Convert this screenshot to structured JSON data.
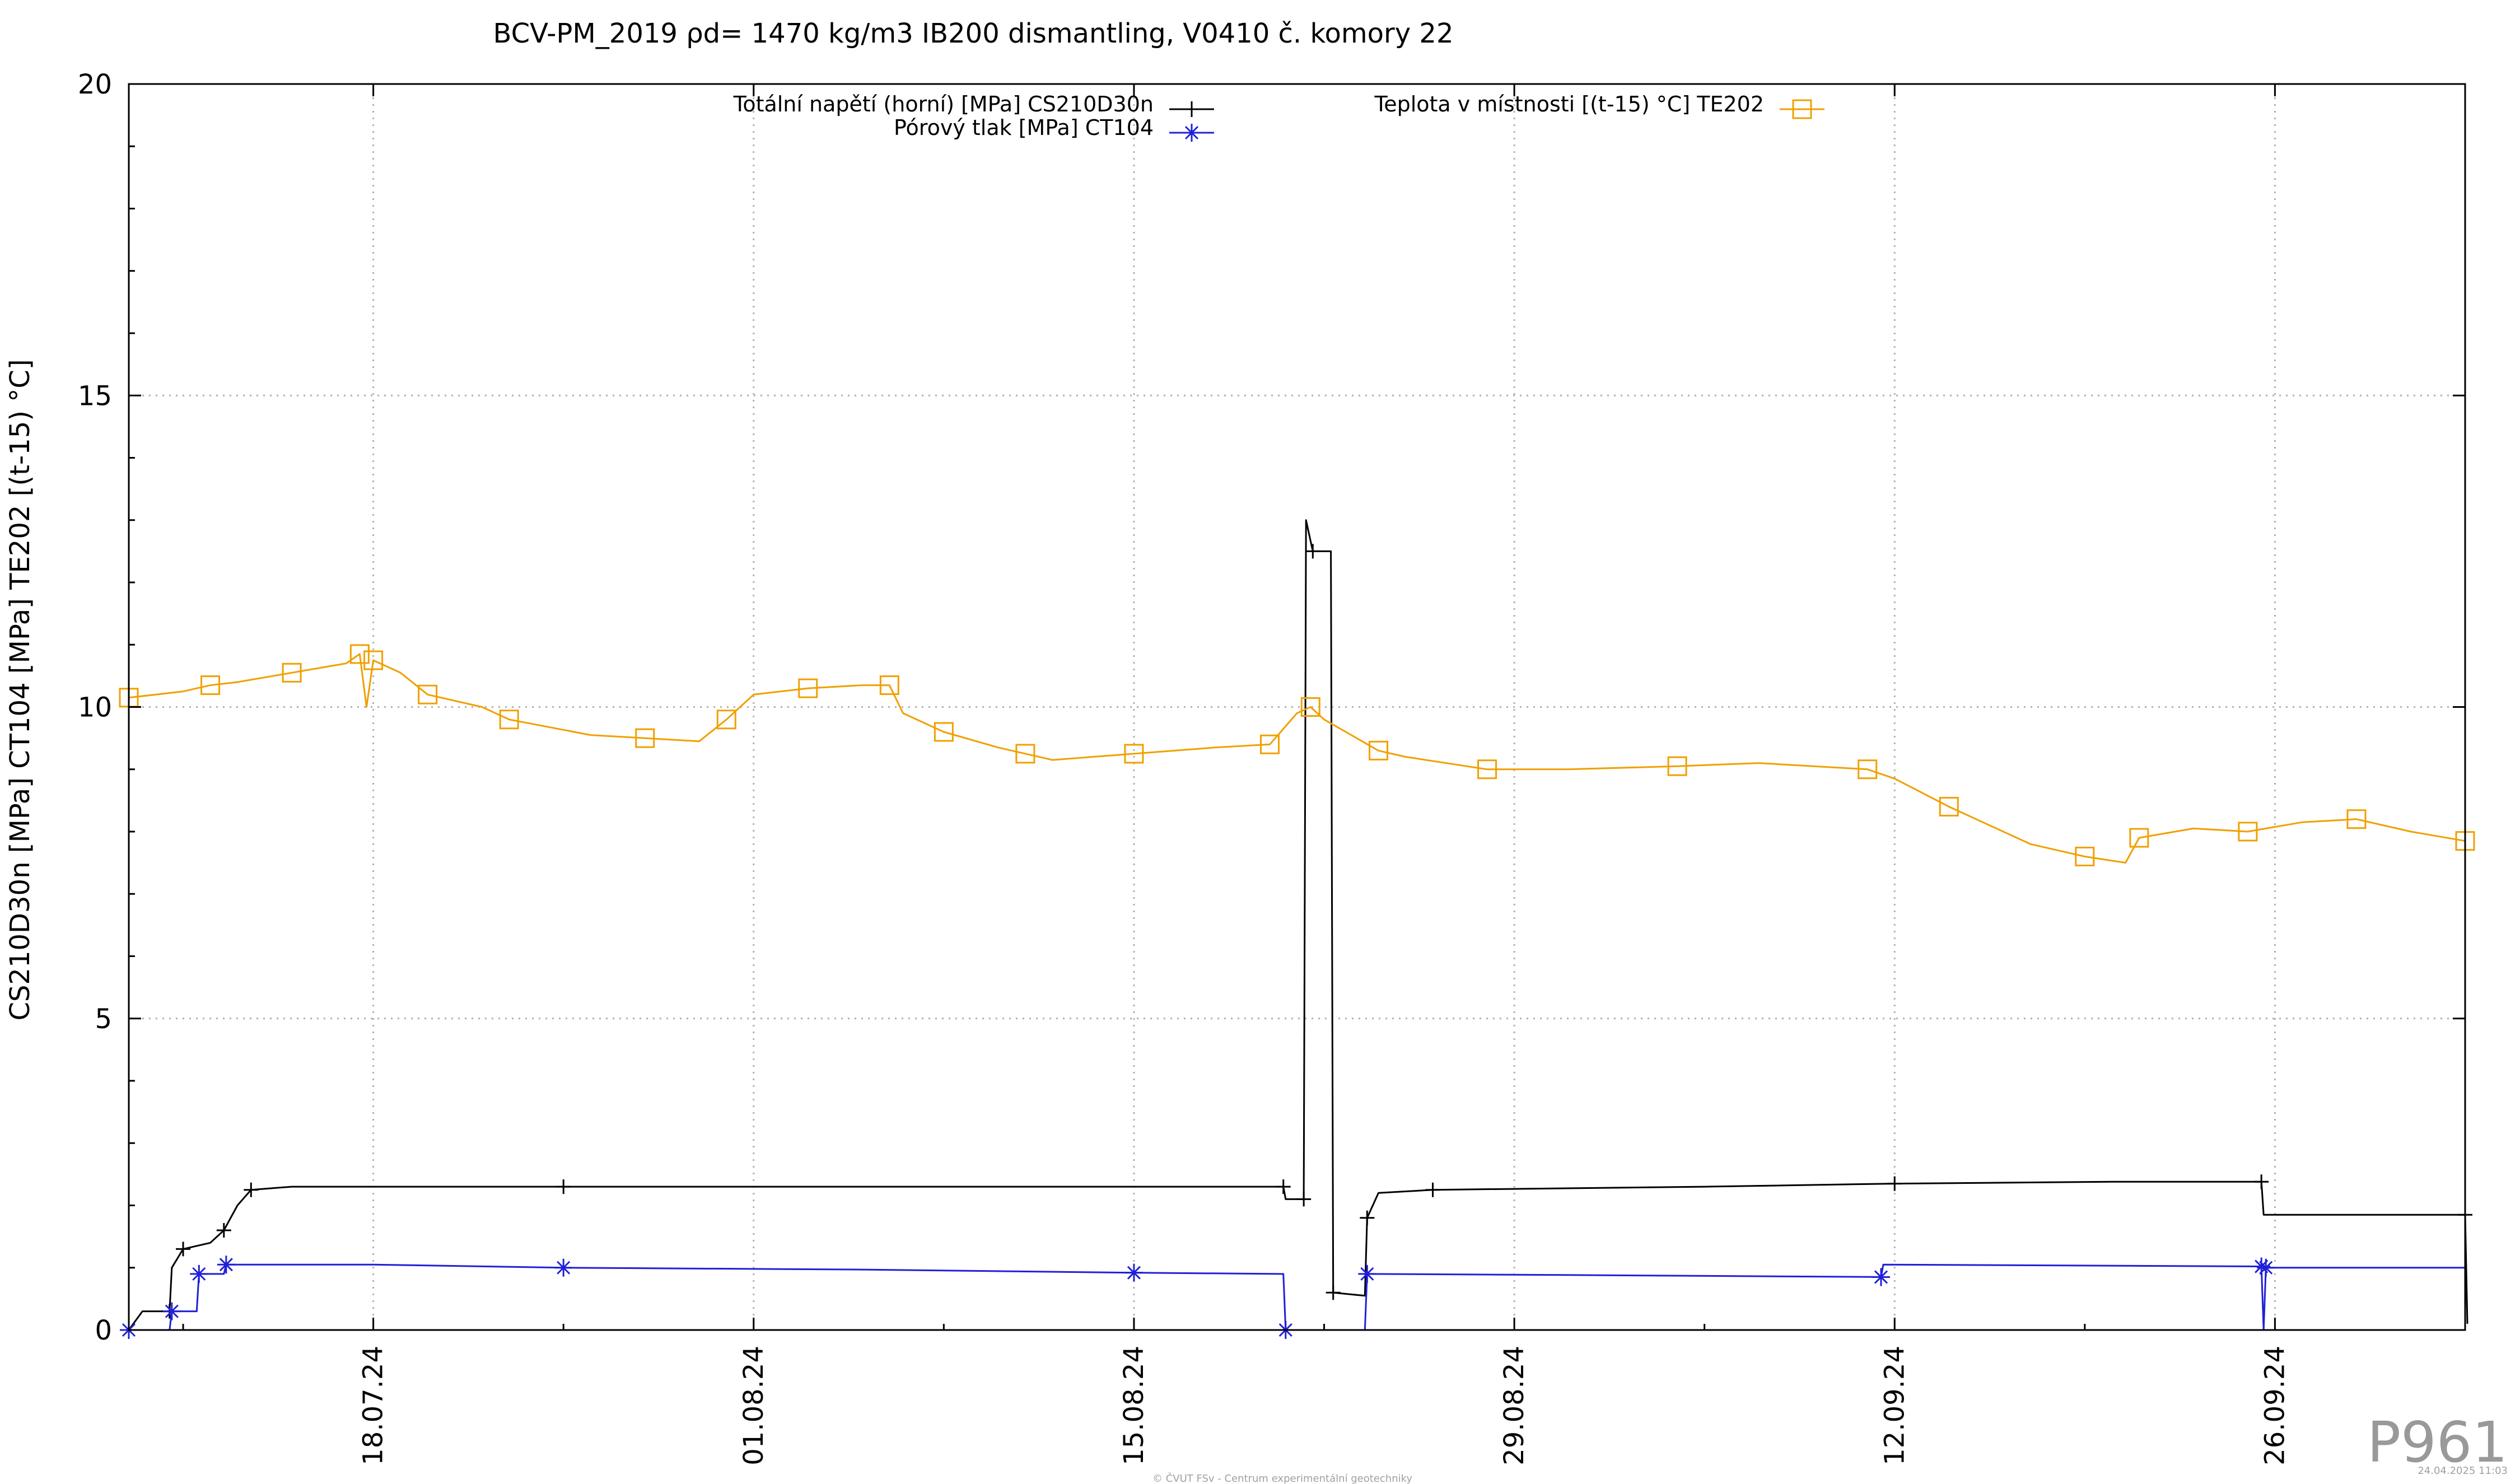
{
  "chart_data": {
    "type": "line",
    "title": "BCV-PM_2019 ρd= 1470 kg/m3 IB200 dismantling, V0410 č. komory 22",
    "ylabel": "CS210D30n [MPa] CT104 [MPa] TE202 [(t-15) °C]",
    "xlabel": "",
    "ylim": [
      0,
      20
    ],
    "xlim": [
      "2024-07-09",
      "2024-10-03"
    ],
    "yticks": [
      "0",
      "5",
      "10",
      "15",
      "20"
    ],
    "xticks": [
      {
        "date": "2024-07-18",
        "label": "18.07.24"
      },
      {
        "date": "2024-08-01",
        "label": "01.08.24"
      },
      {
        "date": "2024-08-15",
        "label": "15.08.24"
      },
      {
        "date": "2024-08-29",
        "label": "29.08.24"
      },
      {
        "date": "2024-09-12",
        "label": "12.09.24"
      },
      {
        "date": "2024-09-26",
        "label": "26.09.24"
      }
    ],
    "grid": true,
    "legend_position": "top",
    "series": [
      {
        "name": "Totální napětí (horní) [MPa] CS210D30n",
        "color": "#000000",
        "marker": "plus",
        "points": [
          [
            "2024-07-09T00:00",
            0.0
          ],
          [
            "2024-07-09T12:00",
            0.3
          ],
          [
            "2024-07-10T12:00",
            0.3
          ],
          [
            "2024-07-10T14:00",
            1.0
          ],
          [
            "2024-07-11T00:00",
            1.3
          ],
          [
            "2024-07-12T00:00",
            1.4
          ],
          [
            "2024-07-12T12:00",
            1.6
          ],
          [
            "2024-07-13T00:00",
            2.0
          ],
          [
            "2024-07-13T12:00",
            2.25
          ],
          [
            "2024-07-15T00:00",
            2.3
          ],
          [
            "2024-07-25T00:00",
            2.3
          ],
          [
            "2024-08-05T00:00",
            2.3
          ],
          [
            "2024-08-20T12:00",
            2.3
          ],
          [
            "2024-08-20T14:00",
            2.1
          ],
          [
            "2024-08-21T06:00",
            2.1
          ],
          [
            "2024-08-21T08:00",
            13.0
          ],
          [
            "2024-08-21T14:00",
            12.5
          ],
          [
            "2024-08-22T06:00",
            12.5
          ],
          [
            "2024-08-22T08:00",
            0.6
          ],
          [
            "2024-08-23T12:00",
            0.55
          ],
          [
            "2024-08-23T14:00",
            1.8
          ],
          [
            "2024-08-24T00:00",
            2.2
          ],
          [
            "2024-08-26T00:00",
            2.25
          ],
          [
            "2024-09-05T00:00",
            2.3
          ],
          [
            "2024-09-12T00:00",
            2.35
          ],
          [
            "2024-09-20T00:00",
            2.38
          ],
          [
            "2024-09-25T12:00",
            2.38
          ],
          [
            "2024-09-25T14:00",
            1.85
          ],
          [
            "2024-10-03T00:00",
            1.85
          ],
          [
            "2024-10-03T02:00",
            0.1
          ]
        ]
      },
      {
        "name": "Pórový tlak [MPa] CT104",
        "color": "#2020d8",
        "marker": "star",
        "points": [
          [
            "2024-07-09T00:00",
            0.0
          ],
          [
            "2024-07-10T12:00",
            0.0
          ],
          [
            "2024-07-10T14:00",
            0.3
          ],
          [
            "2024-07-11T12:00",
            0.3
          ],
          [
            "2024-07-11T14:00",
            0.9
          ],
          [
            "2024-07-12T12:00",
            0.9
          ],
          [
            "2024-07-12T14:00",
            1.05
          ],
          [
            "2024-07-18T00:00",
            1.05
          ],
          [
            "2024-07-25T00:00",
            1.0
          ],
          [
            "2024-08-05T00:00",
            0.97
          ],
          [
            "2024-08-15T00:00",
            0.92
          ],
          [
            "2024-08-20T12:00",
            0.9
          ],
          [
            "2024-08-20T14:00",
            0.0
          ],
          [
            "2024-08-23T12:00",
            0.0
          ],
          [
            "2024-08-23T14:00",
            0.9
          ],
          [
            "2024-09-01T00:00",
            0.88
          ],
          [
            "2024-09-11T12:00",
            0.85
          ],
          [
            "2024-09-11T14:00",
            1.05
          ],
          [
            "2024-09-25T12:00",
            1.02
          ],
          [
            "2024-09-25T14:00",
            0.0
          ],
          [
            "2024-09-25T16:00",
            1.0
          ],
          [
            "2024-10-03T00:00",
            1.0
          ]
        ]
      },
      {
        "name": "Teplota v místnosti [(t-15) °C] TE202",
        "color": "#f0a000",
        "marker": "square",
        "points": [
          [
            "2024-07-09T00:00",
            10.15
          ],
          [
            "2024-07-11T00:00",
            10.25
          ],
          [
            "2024-07-12T00:00",
            10.35
          ],
          [
            "2024-07-13T00:00",
            10.4
          ],
          [
            "2024-07-15T00:00",
            10.55
          ],
          [
            "2024-07-17T00:00",
            10.7
          ],
          [
            "2024-07-17T12:00",
            10.85
          ],
          [
            "2024-07-17T18:00",
            10.0
          ],
          [
            "2024-07-18T00:00",
            10.75
          ],
          [
            "2024-07-19T00:00",
            10.55
          ],
          [
            "2024-07-20T00:00",
            10.2
          ],
          [
            "2024-07-22T00:00",
            10.0
          ],
          [
            "2024-07-23T00:00",
            9.8
          ],
          [
            "2024-07-26T00:00",
            9.55
          ],
          [
            "2024-07-28T00:00",
            9.5
          ],
          [
            "2024-07-30T00:00",
            9.45
          ],
          [
            "2024-07-31T00:00",
            9.8
          ],
          [
            "2024-08-01T00:00",
            10.2
          ],
          [
            "2024-08-03T00:00",
            10.3
          ],
          [
            "2024-08-05T00:00",
            10.35
          ],
          [
            "2024-08-06T00:00",
            10.35
          ],
          [
            "2024-08-06T12:00",
            9.9
          ],
          [
            "2024-08-08T00:00",
            9.6
          ],
          [
            "2024-08-10T00:00",
            9.35
          ],
          [
            "2024-08-11T00:00",
            9.25
          ],
          [
            "2024-08-12T00:00",
            9.15
          ],
          [
            "2024-08-15T00:00",
            9.25
          ],
          [
            "2024-08-18T00:00",
            9.35
          ],
          [
            "2024-08-20T00:00",
            9.4
          ],
          [
            "2024-08-21T00:00",
            9.9
          ],
          [
            "2024-08-21T12:00",
            10.0
          ],
          [
            "2024-08-22T00:00",
            9.8
          ],
          [
            "2024-08-24T00:00",
            9.3
          ],
          [
            "2024-08-25T00:00",
            9.2
          ],
          [
            "2024-08-28T00:00",
            9.0
          ],
          [
            "2024-08-31T00:00",
            9.0
          ],
          [
            "2024-09-04T00:00",
            9.05
          ],
          [
            "2024-09-07T00:00",
            9.1
          ],
          [
            "2024-09-11T00:00",
            9.0
          ],
          [
            "2024-09-12T00:00",
            8.85
          ],
          [
            "2024-09-14T00:00",
            8.4
          ],
          [
            "2024-09-17T00:00",
            7.8
          ],
          [
            "2024-09-19T00:00",
            7.6
          ],
          [
            "2024-09-20T12:00",
            7.5
          ],
          [
            "2024-09-21T00:00",
            7.9
          ],
          [
            "2024-09-23T00:00",
            8.05
          ],
          [
            "2024-09-25T00:00",
            8.0
          ],
          [
            "2024-09-27T00:00",
            8.15
          ],
          [
            "2024-09-29T00:00",
            8.2
          ],
          [
            "2024-10-01T00:00",
            8.0
          ],
          [
            "2024-10-03T00:00",
            7.85
          ]
        ]
      }
    ]
  },
  "footer": {
    "copyright": "© ČVUT FSv - Centrum experimentální geotechniky",
    "timestamp": "24.04.2025 11:03",
    "code": "P961"
  }
}
